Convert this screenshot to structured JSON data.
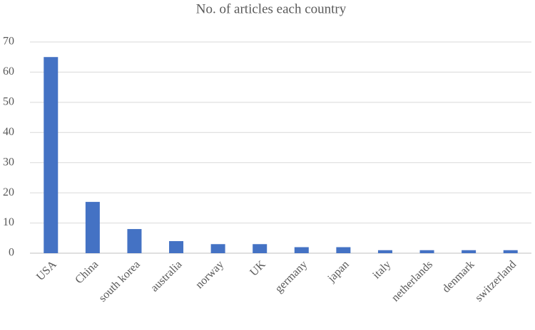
{
  "chart_data": {
    "type": "bar",
    "title": "No. of articles each country",
    "categories": [
      "USA",
      "China",
      "south korea",
      "australia",
      "norway",
      "UK",
      "germany",
      "japan",
      "italy",
      "netherlands",
      "denmark",
      "switzerland"
    ],
    "values": [
      65,
      17,
      8,
      4,
      3,
      3,
      2,
      2,
      1,
      1,
      1,
      1
    ],
    "color": "#4472c4",
    "ylim": [
      0,
      70
    ],
    "yticks": [
      0,
      10,
      20,
      30,
      40,
      50,
      60,
      70
    ],
    "grid": true
  }
}
